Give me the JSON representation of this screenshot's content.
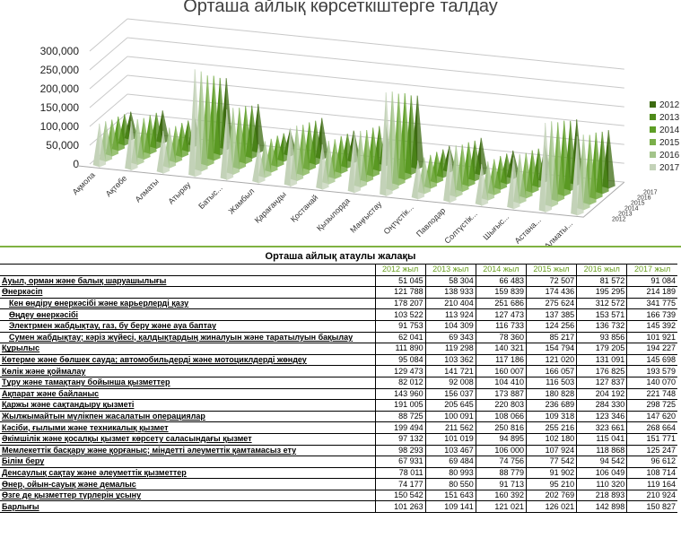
{
  "chart": {
    "title": "Орташа айлық көрсеткіштерге талдау",
    "chart_data": {
      "type": "bar3d-pyramid",
      "title": "Орташа айлық көрсеткіштерге талдау",
      "ylim": [
        0,
        300000
      ],
      "yticks": [
        "0",
        "50,000",
        "100,000",
        "150,000",
        "200,000",
        "250,000",
        "300,000"
      ],
      "categories": [
        "Ақмола",
        "Ақтөбе",
        "Алматы",
        "Атырау",
        "Батыс...",
        "Жамбыл",
        "Қарағанды",
        "Қостанай",
        "Қызылорда",
        "Маңғыстау",
        "Оңтүстік...",
        "Павлодар",
        "Солтүстік...",
        "Шығыс...",
        "Астана...",
        "Алматы..."
      ],
      "depth_labels": [
        "2012",
        "2013",
        "2014",
        "2015",
        "2016",
        "2017"
      ],
      "series": [
        {
          "name": "2012",
          "color": "#3d6b12",
          "values": [
            70000,
            82000,
            72000,
            185000,
            125000,
            65000,
            105000,
            80000,
            105000,
            190000,
            65000,
            95000,
            70000,
            92000,
            170000,
            150000
          ]
        },
        {
          "name": "2013",
          "color": "#4e8a1a",
          "values": [
            78000,
            90000,
            78000,
            200000,
            135000,
            70000,
            112000,
            86000,
            115000,
            205000,
            70000,
            102000,
            76000,
            98000,
            180000,
            160000
          ]
        },
        {
          "name": "2014",
          "color": "#5e9e26",
          "values": [
            86000,
            98000,
            86000,
            220000,
            148000,
            78000,
            122000,
            94000,
            125000,
            225000,
            78000,
            112000,
            84000,
            108000,
            195000,
            172000
          ]
        },
        {
          "name": "2015",
          "color": "#7aaf4a",
          "values": [
            92000,
            105000,
            92000,
            235000,
            158000,
            84000,
            130000,
            100000,
            133000,
            238000,
            84000,
            120000,
            90000,
            115000,
            205000,
            180000
          ]
        },
        {
          "name": "2016",
          "color": "#a3c48a",
          "values": [
            102000,
            116000,
            102000,
            260000,
            172000,
            92000,
            142000,
            110000,
            145000,
            258000,
            92000,
            132000,
            98000,
            126000,
            222000,
            195000
          ]
        },
        {
          "name": "2017",
          "color": "#c3d2b8",
          "values": [
            110000,
            125000,
            108000,
            280000,
            182000,
            98000,
            150000,
            115000,
            152000,
            270000,
            98000,
            140000,
            105000,
            132000,
            232000,
            205000
          ]
        }
      ],
      "legend": "right"
    }
  },
  "table": {
    "title": "Орташа айлық атаулы жалақы",
    "years": [
      "2012 жыл",
      "2013 жыл",
      "2014 жыл",
      "2015 жыл",
      "2016 жыл",
      "2017 жыл"
    ],
    "rows": [
      {
        "label": "Ауыл, орман және балық шаруашылығы",
        "v": [
          "51 045",
          "58 304",
          "66 483",
          "72 507",
          "81 572",
          "91 084"
        ]
      },
      {
        "label": "Өнеркәсіп",
        "v": [
          "121 788",
          "138 933",
          "159 839",
          "174 436",
          "195 295",
          "214 189"
        ]
      },
      {
        "label": "Кен өндіру өнеркәсібі және карьерлерді қазу",
        "v": [
          "178 207",
          "210 404",
          "251 686",
          "275 624",
          "312 572",
          "341 775"
        ],
        "ind": true
      },
      {
        "label": "Өңдеу өнеркәсібі",
        "v": [
          "103 522",
          "113 924",
          "127 473",
          "137 385",
          "153 571",
          "166 739"
        ],
        "ind": true
      },
      {
        "label": "Электрмен жабдықтау, газ, бу беру және ауа баптау",
        "v": [
          "91 753",
          "104 309",
          "116 733",
          "124 256",
          "136 732",
          "145 392"
        ],
        "ind": true
      },
      {
        "label": "Сумен жабдықтау; кәріз жүйесі, қалдықтардың жиналуын және таратылуын бақылау",
        "v": [
          "62 041",
          "69 343",
          "78 360",
          "85 217",
          "93 856",
          "101 921"
        ],
        "ind": true
      },
      {
        "label": "Құрылыс",
        "v": [
          "111 890",
          "119 298",
          "140 321",
          "154 794",
          "179 205",
          "194 227"
        ]
      },
      {
        "label": "Көтерме және бөлшек сауда; автомобильдерді және мотоциклдерді жөндеу",
        "v": [
          "95 084",
          "103 362",
          "117 186",
          "121 020",
          "131 091",
          "145 698"
        ]
      },
      {
        "label": "Көлік және қоймалау",
        "v": [
          "129 473",
          "141 721",
          "160 007",
          "166 057",
          "176 825",
          "193 579"
        ]
      },
      {
        "label": "Тұру және тамақтану бойынша қызметтер",
        "v": [
          "82 012",
          "92 008",
          "104 410",
          "116 503",
          "127 837",
          "140 070"
        ]
      },
      {
        "label": "Ақпарат және байланыс",
        "v": [
          "143 960",
          "156 037",
          "173 887",
          "180 828",
          "204 192",
          "221 748"
        ]
      },
      {
        "label": "Қаржы және сақтандыру қызметі",
        "v": [
          "191 005",
          "205 645",
          "220 803",
          "236 689",
          "284 330",
          "298 725"
        ]
      },
      {
        "label": "Жылжымайтын мүлікпен жасалатын операциялар",
        "v": [
          "88 725",
          "100 091",
          "108 066",
          "109 318",
          "123 346",
          "147 620"
        ]
      },
      {
        "label": "Кәсіби, ғылыми және техникалық қызмет",
        "v": [
          "199 494",
          "211 562",
          "250 816",
          "255 216",
          "323 661",
          "268 664"
        ]
      },
      {
        "label": "Әкімшілік және қосалқы қызмет көрсету саласындағы қызмет",
        "v": [
          "97 132",
          "101 019",
          "94 895",
          "102 180",
          "115 041",
          "151 771"
        ]
      },
      {
        "label": "Мемлекеттік басқару және қорғаныс; міндетті әлеуметтік қамтамасыз ету",
        "v": [
          "98 293",
          "103 467",
          "106 000",
          "107 924",
          "118 868",
          "125 247"
        ]
      },
      {
        "label": "Білім беру",
        "v": [
          "67 931",
          "69 484",
          "74 756",
          "77 542",
          "94 542",
          "96 612"
        ]
      },
      {
        "label": "Денсаулық сақтау және әлеуметтік қызметтер",
        "v": [
          "78 011",
          "80 993",
          "88 779",
          "91 902",
          "106 049",
          "108 714"
        ]
      },
      {
        "label": "Өнер, ойын-сауық  және демалыс",
        "v": [
          "74 177",
          "80 550",
          "91 713",
          "95 210",
          "110 320",
          "119 164"
        ]
      },
      {
        "label": "Өзге де қызметтер түрлерін ұсыну",
        "v": [
          "150 542",
          "151 643",
          "160 392",
          "202 769",
          "218 893",
          "210 924"
        ]
      },
      {
        "label": "Барлығы",
        "v": [
          "101 263",
          "109 141",
          "121 021",
          "126 021",
          "142 898",
          "150 827"
        ]
      }
    ]
  }
}
